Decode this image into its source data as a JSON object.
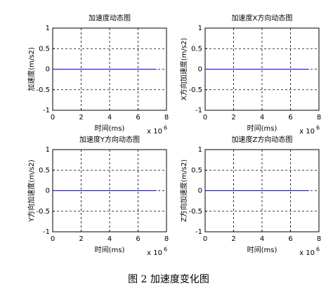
{
  "chart_data": [
    {
      "type": "line",
      "title": "加速度动态图",
      "xlabel": "时间(ms)",
      "ylabel": "加速度(m/s2)",
      "xscale_label": {
        "base": "x 10",
        "exponent": "6"
      },
      "x": [
        0,
        7.3
      ],
      "series": [
        {
          "color": "#0000cc",
          "values": [
            0,
            0
          ]
        }
      ],
      "xlim": [
        0,
        8
      ],
      "xticks": [
        0,
        2,
        4,
        6,
        8
      ],
      "ylim": [
        -1,
        1
      ],
      "yticks": [
        -1,
        -0.5,
        0,
        0.5,
        1
      ],
      "grid": true
    },
    {
      "type": "line",
      "title": "加速度X方向动态图",
      "xlabel": "时间(ms)",
      "ylabel": "X方向加速度(m/s2)",
      "xscale_label": {
        "base": "x 10",
        "exponent": "6"
      },
      "x": [
        0,
        7.3
      ],
      "series": [
        {
          "color": "#0000cc",
          "values": [
            0,
            0
          ]
        }
      ],
      "xlim": [
        0,
        8
      ],
      "xticks": [
        0,
        2,
        4,
        6,
        8
      ],
      "ylim": [
        -1,
        1
      ],
      "yticks": [
        -1,
        -0.5,
        0,
        0.5,
        1
      ],
      "grid": true
    },
    {
      "type": "line",
      "title": "加速度Y方向动态图",
      "xlabel": "时间(ms)",
      "ylabel": "Y方向加速度(m/s2)",
      "xscale_label": {
        "base": "x 10",
        "exponent": "6"
      },
      "x": [
        0,
        7.3
      ],
      "series": [
        {
          "color": "#0000cc",
          "values": [
            0,
            0
          ]
        }
      ],
      "xlim": [
        0,
        8
      ],
      "xticks": [
        0,
        2,
        4,
        6,
        8
      ],
      "ylim": [
        -1,
        1
      ],
      "yticks": [
        -1,
        -0.5,
        0,
        0.5,
        1
      ],
      "grid": true
    },
    {
      "type": "line",
      "title": "加速度Z方向动态图",
      "xlabel": "时间(ms)",
      "ylabel": "Z方向加速度(m/s2)",
      "xscale_label": {
        "base": "x 10",
        "exponent": "6"
      },
      "x": [
        0,
        7.3
      ],
      "series": [
        {
          "color": "#0000cc",
          "values": [
            0,
            0
          ]
        }
      ],
      "xlim": [
        0,
        8
      ],
      "xticks": [
        0,
        2,
        4,
        6,
        8
      ],
      "ylim": [
        -1,
        1
      ],
      "yticks": [
        -1,
        -0.5,
        0,
        0.5,
        1
      ],
      "grid": true
    }
  ],
  "caption": "图 2  加速度变化图"
}
